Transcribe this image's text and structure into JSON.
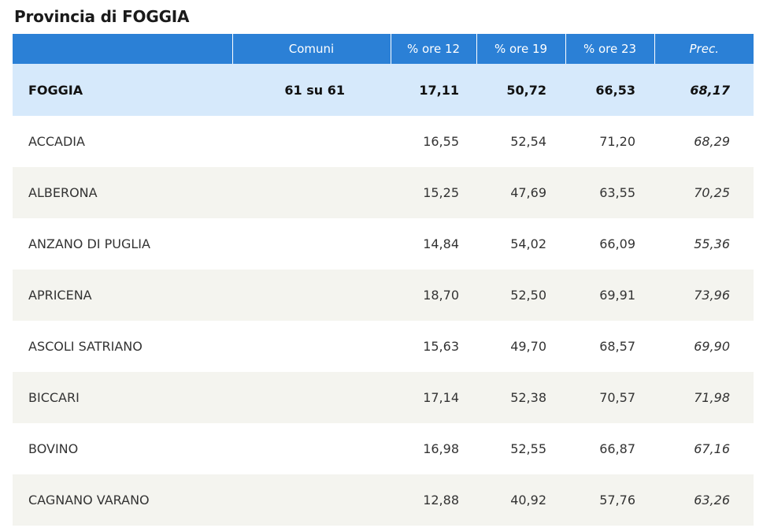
{
  "title": "Provincia di FOGGIA",
  "colors": {
    "header_bg": "#2b80d6",
    "total_bg": "#d6e9fb",
    "stripe_bg": "#f4f4ef"
  },
  "header": {
    "name": "",
    "comuni": "Comuni",
    "h12": "% ore 12",
    "h19": "% ore 19",
    "h23": "% ore 23",
    "prec": "Prec."
  },
  "total": {
    "name": "FOGGIA",
    "comuni": "61 su 61",
    "h12": "17,11",
    "h19": "50,72",
    "h23": "66,53",
    "prec": "68,17"
  },
  "rows": [
    {
      "name": "ACCADIA",
      "comuni": "",
      "h12": "16,55",
      "h19": "52,54",
      "h23": "71,20",
      "prec": "68,29"
    },
    {
      "name": "ALBERONA",
      "comuni": "",
      "h12": "15,25",
      "h19": "47,69",
      "h23": "63,55",
      "prec": "70,25"
    },
    {
      "name": "ANZANO DI PUGLIA",
      "comuni": "",
      "h12": "14,84",
      "h19": "54,02",
      "h23": "66,09",
      "prec": "55,36"
    },
    {
      "name": "APRICENA",
      "comuni": "",
      "h12": "18,70",
      "h19": "52,50",
      "h23": "69,91",
      "prec": "73,96"
    },
    {
      "name": "ASCOLI SATRIANO",
      "comuni": "",
      "h12": "15,63",
      "h19": "49,70",
      "h23": "68,57",
      "prec": "69,90"
    },
    {
      "name": "BICCARI",
      "comuni": "",
      "h12": "17,14",
      "h19": "52,38",
      "h23": "70,57",
      "prec": "71,98"
    },
    {
      "name": "BOVINO",
      "comuni": "",
      "h12": "16,98",
      "h19": "52,55",
      "h23": "66,87",
      "prec": "67,16"
    },
    {
      "name": "CAGNANO VARANO",
      "comuni": "",
      "h12": "12,88",
      "h19": "40,92",
      "h23": "57,76",
      "prec": "63,26"
    }
  ]
}
